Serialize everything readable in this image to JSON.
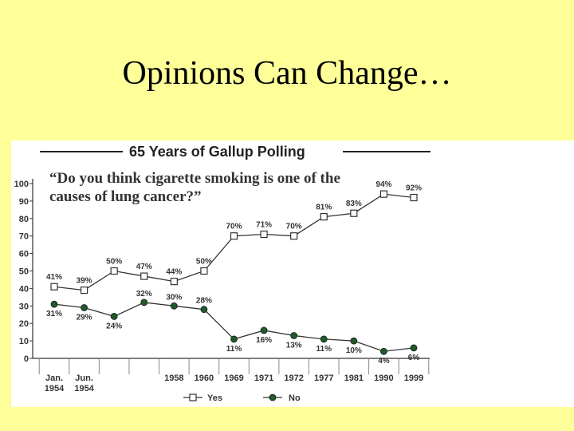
{
  "slide": {
    "title": "Opinions Can Change…"
  },
  "chart_data": {
    "type": "line",
    "title": "65 Years of Gallup Polling",
    "subtitle": [
      "“Do you think cigarette smoking is one of the",
      "causes of lung cancer?”"
    ],
    "categories": [
      [
        "Jan.",
        "1954"
      ],
      [
        "Jun.",
        "1954"
      ],
      [],
      [],
      [
        "1958"
      ],
      [
        "1960"
      ],
      [
        "1969"
      ],
      [
        "1971"
      ],
      [
        "1972"
      ],
      [
        "1977"
      ],
      [
        "1981"
      ],
      [
        "1990"
      ],
      [
        "1999"
      ]
    ],
    "yticks": [
      0,
      10,
      20,
      30,
      40,
      50,
      60,
      70,
      80,
      90,
      100
    ],
    "ylim": [
      0,
      100
    ],
    "grid": false,
    "legend_position": "bottom",
    "series": [
      {
        "name": "Yes",
        "marker": "square-open",
        "values": [
          41,
          39,
          50,
          47,
          44,
          50,
          70,
          71,
          70,
          81,
          83,
          94,
          92
        ],
        "labels": [
          "41%",
          "39%",
          "50%",
          "47%",
          "44%",
          "50%",
          "70%",
          "71%",
          "70%",
          "81%",
          "83%",
          "94%",
          "92%"
        ]
      },
      {
        "name": "No",
        "marker": "circle-filled",
        "color": "#1f5a2a",
        "values": [
          31,
          29,
          24,
          32,
          30,
          28,
          11,
          16,
          13,
          11,
          10,
          4,
          6
        ],
        "labels": [
          "31%",
          "29%",
          "24%",
          "32%",
          "30%",
          "28%",
          "11%",
          "16%",
          "13%",
          "11%",
          "10%",
          "4%",
          "6%"
        ]
      }
    ]
  }
}
